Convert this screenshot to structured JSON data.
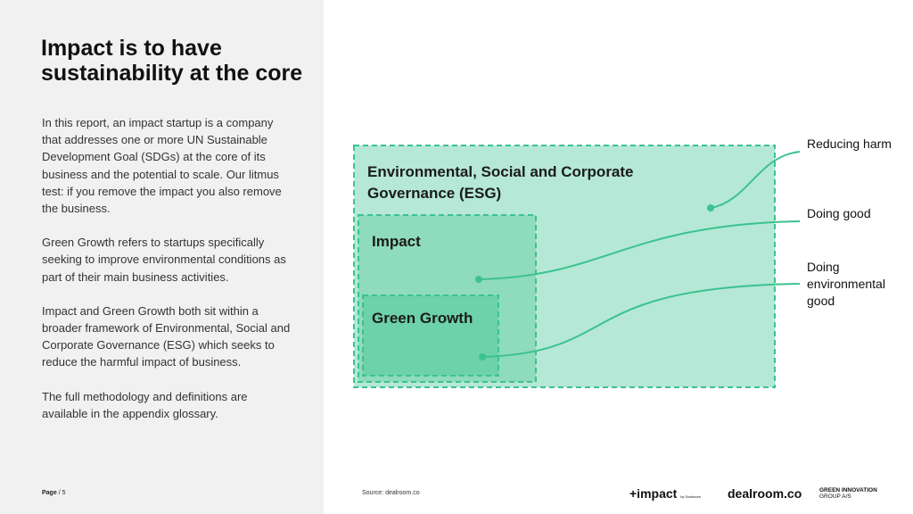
{
  "title": "Impact is to have sustainability at the core",
  "paragraphs": [
    "In this report, an impact startup is a company that addresses one or more UN Sustainable Development Goal (SDGs) at the core of its business and the potential to scale. Our litmus test: if you remove the impact you also remove the business.",
    "Green Growth refers to startups specifically seeking to improve environmental conditions as part of their main business activities.",
    "Impact and Green Growth both sit within a broader framework of Environmental, Social and Corporate Governance (ESG) which seeks to reduce the harmful impact of business.",
    "The full methodology and definitions are available in the appendix glossary."
  ],
  "footer": {
    "page_label": "Page",
    "page_number": "/ 5",
    "source": "Source: dealroom.co"
  },
  "diagram": {
    "boxes": {
      "esg": "Environmental, Social and Corporate Governance (ESG)",
      "impact": "Impact",
      "green_growth": "Green Growth"
    },
    "side_labels": {
      "reducing_harm": "Reducing harm",
      "doing_good": "Doing good",
      "doing_environmental_good": "Doing environmental good"
    },
    "colors": {
      "esg_fill": "#b5e8d6",
      "impact_fill": "#8fdbbd",
      "green_fill": "#6dd1aa",
      "dash": "#3cc28f",
      "connector": "#3cc28f"
    }
  },
  "logos": {
    "impact": "+impact",
    "impact_sub": "by Dealroom",
    "dealroom": "dealroom.co",
    "green_innovation": "GREEN INNOVATION",
    "green_innovation_sub": "GROUP A/S"
  }
}
